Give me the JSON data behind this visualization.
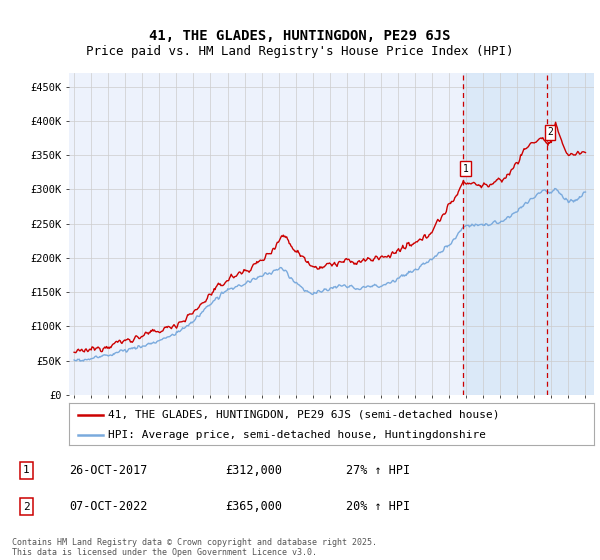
{
  "title": "41, THE GLADES, HUNTINGDON, PE29 6JS",
  "subtitle": "Price paid vs. HM Land Registry's House Price Index (HPI)",
  "ylim": [
    0,
    470000
  ],
  "yticks": [
    0,
    50000,
    100000,
    150000,
    200000,
    250000,
    300000,
    350000,
    400000,
    450000
  ],
  "ytick_labels": [
    "£0",
    "£50K",
    "£100K",
    "£150K",
    "£200K",
    "£250K",
    "£300K",
    "£350K",
    "£400K",
    "£450K"
  ],
  "xticks": [
    1995,
    1996,
    1997,
    1998,
    1999,
    2000,
    2001,
    2002,
    2003,
    2004,
    2005,
    2006,
    2007,
    2008,
    2009,
    2010,
    2011,
    2012,
    2013,
    2014,
    2015,
    2016,
    2017,
    2018,
    2019,
    2020,
    2021,
    2022,
    2023,
    2024,
    2025
  ],
  "red_line_color": "#cc0000",
  "blue_line_color": "#7aaadd",
  "grid_color": "#cccccc",
  "background_color": "#ffffff",
  "plot_bg_color": "#edf2fc",
  "shade_color": "#d8e8f8",
  "dashed_line_color": "#cc0000",
  "marker1_x": 2017.82,
  "marker1_y": 312000,
  "marker2_x": 2022.77,
  "marker2_y": 365000,
  "legend_label_red": "41, THE GLADES, HUNTINGDON, PE29 6JS (semi-detached house)",
  "legend_label_blue": "HPI: Average price, semi-detached house, Huntingdonshire",
  "annotation1_date": "26-OCT-2017",
  "annotation1_price": "£312,000",
  "annotation1_hpi": "27% ↑ HPI",
  "annotation2_date": "07-OCT-2022",
  "annotation2_price": "£365,000",
  "annotation2_hpi": "20% ↑ HPI",
  "footer_text": "Contains HM Land Registry data © Crown copyright and database right 2025.\nThis data is licensed under the Open Government Licence v3.0.",
  "title_fontsize": 10,
  "subtitle_fontsize": 9,
  "tick_fontsize": 7.5,
  "legend_fontsize": 8,
  "footer_fontsize": 6
}
